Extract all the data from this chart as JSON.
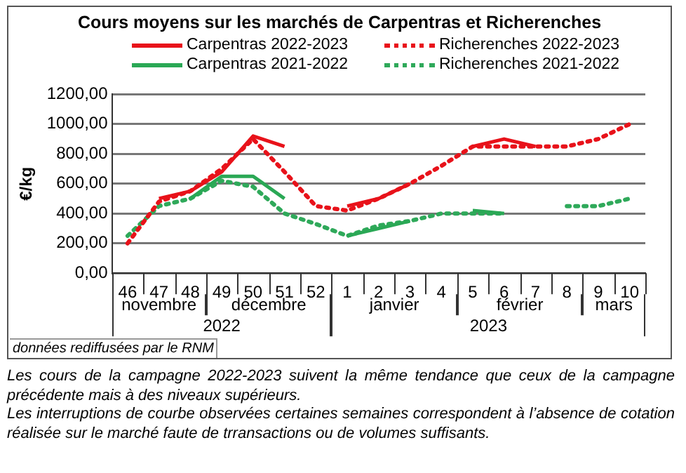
{
  "chart_data": {
    "type": "line",
    "title": "Cours moyens sur les marchés de Carpentras et Richerenches",
    "ylabel": "€/kg",
    "categories": [
      "46",
      "47",
      "48",
      "49",
      "50",
      "51",
      "52",
      "1",
      "2",
      "3",
      "4",
      "5",
      "6",
      "7",
      "8",
      "9",
      "10"
    ],
    "series": [
      {
        "name": "Carpentras 2022-2023",
        "color": "#e8121a",
        "line_style": "solid",
        "values": [
          null,
          500,
          550,
          680,
          920,
          850,
          null,
          450,
          500,
          600,
          null,
          850,
          900,
          850,
          null,
          null,
          null
        ]
      },
      {
        "name": "Richerenches 2022-2023",
        "color": "#e8121a",
        "line_style": "dotted",
        "values": [
          200,
          480,
          550,
          700,
          900,
          680,
          450,
          420,
          500,
          600,
          720,
          850,
          850,
          850,
          850,
          900,
          1000
        ]
      },
      {
        "name": "Carpentras 2021-2022",
        "color": "#2aa855",
        "line_style": "solid",
        "values": [
          null,
          null,
          500,
          650,
          650,
          500,
          null,
          250,
          300,
          350,
          null,
          420,
          400,
          null,
          null,
          null,
          null
        ]
      },
      {
        "name": "Richerenches 2021-2022",
        "color": "#2fa95a",
        "line_style": "dotted",
        "values": [
          250,
          450,
          500,
          620,
          580,
          400,
          330,
          250,
          320,
          350,
          400,
          400,
          400,
          null,
          450,
          450,
          500
        ]
      }
    ],
    "ylim": [
      0,
      1200
    ],
    "yticks": [
      {
        "value": 0,
        "label": "0,00"
      },
      {
        "value": 200,
        "label": "200,00"
      },
      {
        "value": 400,
        "label": "400,00"
      },
      {
        "value": 600,
        "label": "600,00"
      },
      {
        "value": 800,
        "label": "800,00"
      },
      {
        "value": 1000,
        "label": "1000,00"
      },
      {
        "value": 1200,
        "label": "1200,00"
      }
    ],
    "grid": "y",
    "legend": "top",
    "marker": "none",
    "annotations": [
      "novembre",
      "décembre",
      "janvier",
      "février",
      "mars",
      "2022",
      "2023",
      "données rediffusées par le RNM",
      "Les cours de la campagne 2022-2023 suivent la même tendance que ceux de la campagne précédente mais à des niveaux supérieurs.",
      "Les interruptions de courbe observées certaines semaines correspondent à l’absence de cotation réalisée sur le marché faute de trransactions ou de volumes suffisants."
    ]
  }
}
